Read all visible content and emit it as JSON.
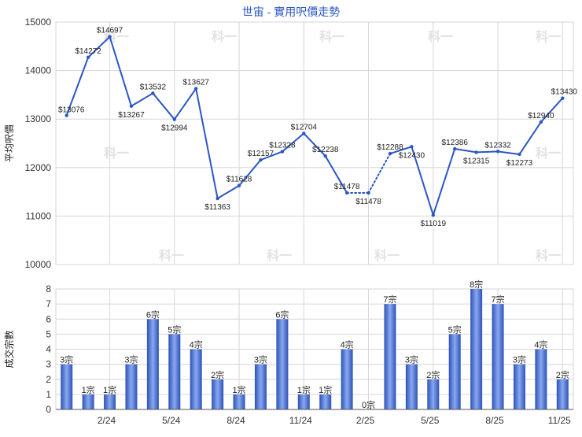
{
  "title": "世宙 - 實用呎價走勢",
  "colors": {
    "line": "#2a56c6",
    "title": "#2a56c6",
    "bar_dark": "#2c52b8",
    "bar_light": "#8aa8ef",
    "grid": "#d6d6d6",
    "axis": "#555555",
    "watermark": "#e2e2e2"
  },
  "watermark_text": "科一",
  "chart_data": [
    {
      "type": "line",
      "ylabel": "平均呎價",
      "ylim": [
        10000,
        15000
      ],
      "yticks": [
        10000,
        11000,
        12000,
        13000,
        14000,
        15000
      ],
      "grid": true,
      "months": 24,
      "points": [
        {
          "x": 0,
          "value": 13076,
          "label": "$13076"
        },
        {
          "x": 1,
          "value": 14272,
          "label": "$14272"
        },
        {
          "x": 2,
          "value": 14697,
          "label": "$14697"
        },
        {
          "x": 3,
          "value": 13267,
          "label": "$13267"
        },
        {
          "x": 4,
          "value": 13532,
          "label": "$13532"
        },
        {
          "x": 5,
          "value": 12994,
          "label": "$12994"
        },
        {
          "x": 6,
          "value": 13627,
          "label": "$13627"
        },
        {
          "x": 7,
          "value": 11363,
          "label": "$11363"
        },
        {
          "x": 8,
          "value": 11628,
          "label": "$11628"
        },
        {
          "x": 9,
          "value": 12157,
          "label": "$12157"
        },
        {
          "x": 10,
          "value": 12328,
          "label": "$12328"
        },
        {
          "x": 11,
          "value": 12704,
          "label": "$12704"
        },
        {
          "x": 12,
          "value": 12238,
          "label": "$12238"
        },
        {
          "x": 13,
          "value": 11478,
          "label": "$11478"
        },
        {
          "x": 14,
          "value": 11478,
          "label": "$11478",
          "interpolated": true
        },
        {
          "x": 15,
          "value": 12288,
          "label": "$12288"
        },
        {
          "x": 16,
          "value": 12430,
          "label": "$12430"
        },
        {
          "x": 17,
          "value": 11019,
          "label": "$11019"
        },
        {
          "x": 18,
          "value": 12386,
          "label": "$12386"
        },
        {
          "x": 19,
          "value": 12315,
          "label": "$12315"
        },
        {
          "x": 20,
          "value": 12332,
          "label": "$12332"
        },
        {
          "x": 21,
          "value": 12273,
          "label": "$12273"
        },
        {
          "x": 22,
          "value": 12940,
          "label": "$12940"
        },
        {
          "x": 23,
          "value": 13430,
          "label": "$13430"
        }
      ]
    },
    {
      "type": "bar",
      "ylabel": "成交宗數",
      "ylim": [
        0,
        8
      ],
      "yticks": [
        0,
        1,
        2,
        3,
        4,
        5,
        6,
        7,
        8
      ],
      "grid": true,
      "xticks": [
        {
          "index": 2,
          "label": "2/24"
        },
        {
          "index": 5,
          "label": "5/24"
        },
        {
          "index": 8,
          "label": "8/24"
        },
        {
          "index": 11,
          "label": "11/24"
        },
        {
          "index": 14,
          "label": "2/25"
        },
        {
          "index": 17,
          "label": "5/25"
        },
        {
          "index": 20,
          "label": "8/25"
        },
        {
          "index": 23,
          "label": "11/25"
        }
      ],
      "bars": [
        {
          "value": 3,
          "label": "3宗"
        },
        {
          "value": 1,
          "label": "1宗"
        },
        {
          "value": 1,
          "label": "1宗"
        },
        {
          "value": 3,
          "label": "3宗"
        },
        {
          "value": 6,
          "label": "6宗"
        },
        {
          "value": 5,
          "label": "5宗"
        },
        {
          "value": 4,
          "label": "4宗"
        },
        {
          "value": 2,
          "label": "2宗"
        },
        {
          "value": 1,
          "label": "1宗"
        },
        {
          "value": 3,
          "label": "3宗"
        },
        {
          "value": 6,
          "label": "6宗"
        },
        {
          "value": 1,
          "label": "1宗"
        },
        {
          "value": 1,
          "label": "1宗"
        },
        {
          "value": 4,
          "label": "4宗"
        },
        {
          "value": 0,
          "label": "0宗"
        },
        {
          "value": 7,
          "label": "7宗"
        },
        {
          "value": 3,
          "label": "3宗"
        },
        {
          "value": 2,
          "label": "2宗"
        },
        {
          "value": 5,
          "label": "5宗"
        },
        {
          "value": 8,
          "label": "8宗"
        },
        {
          "value": 7,
          "label": "7宗"
        },
        {
          "value": 3,
          "label": "3宗"
        },
        {
          "value": 4,
          "label": "4宗"
        },
        {
          "value": 2,
          "label": "2宗"
        }
      ]
    }
  ]
}
